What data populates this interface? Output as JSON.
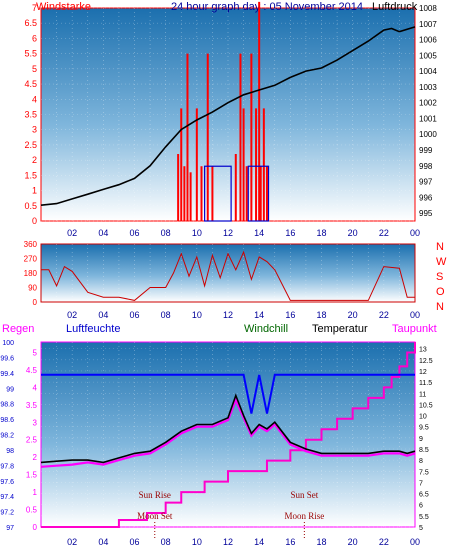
{
  "header": {
    "title": "24 hour graph day : 05 November 2014",
    "left_label": "Windstarke",
    "right_label": "Luftdruck"
  },
  "colors": {
    "wind": "#ff0000",
    "direction": "#cc0000",
    "pressure": "#000000",
    "temperature": "#000000",
    "dewpoint": "#ff00ff",
    "humidity": "#0000ff",
    "rain": "#ff00cc",
    "axis_time": "#000099",
    "sky_top": "#1b6fae",
    "sky_bottom": "#ffffff"
  },
  "time_ticks": [
    "02",
    "04",
    "06",
    "08",
    "10",
    "12",
    "14",
    "16",
    "18",
    "20",
    "22",
    "00"
  ],
  "top_panel": {
    "left_ticks": [
      "7",
      "6.5",
      "6",
      "5.5",
      "5",
      "4.5",
      "4",
      "3.5",
      "3",
      "2.5",
      "2",
      "1.5",
      "1",
      "0.5",
      "0"
    ],
    "right_ticks": [
      "1008",
      "1007",
      "1006",
      "1005",
      "1004",
      "1003",
      "1002",
      "1001",
      "1000",
      "999",
      "998",
      "997",
      "996",
      "995"
    ]
  },
  "mid_panel": {
    "left_ticks": [
      "360",
      "270",
      "180",
      "90",
      "0"
    ],
    "compass": [
      "N",
      "W",
      "S",
      "O",
      "N"
    ]
  },
  "bottom_panel": {
    "labels": {
      "rain": "Regen",
      "humidity": "Luftfeuchte",
      "windchill": "Windchill",
      "temperature": "Temperatur",
      "dewpoint": "Taupunkt"
    },
    "rain_ticks": [
      "5",
      "4.5",
      "4",
      "3.5",
      "3",
      "2.5",
      "2",
      "1.5",
      "1",
      "0.5",
      "0"
    ],
    "humidity_ticks": [
      "100",
      "99.6",
      "99.4",
      "99",
      "98.8",
      "98.6",
      "98.2",
      "98",
      "97.8",
      "97.6",
      "97.4",
      "97.2",
      "97"
    ],
    "temp_ticks": [
      "13",
      "12.5",
      "12",
      "11.5",
      "11",
      "10.5",
      "10",
      "9.5",
      "9",
      "8.5",
      "8",
      "7.5",
      "7",
      "6.5",
      "6",
      "5.5",
      "5"
    ],
    "events": [
      {
        "label": "Sun Rise",
        "hour": 7.3
      },
      {
        "label": "Moon Set",
        "hour": 7.3
      },
      {
        "label": "Sun Set",
        "hour": 16.9
      },
      {
        "label": "Moon Rise",
        "hour": 16.9
      }
    ]
  },
  "chart_data": [
    {
      "type": "line",
      "title": "24 hour graph day : 05 November 2014",
      "xlabel": "",
      "ylabel": "Windstarke",
      "y2label": "Luftdruck",
      "x_hours": [
        0,
        1,
        2,
        3,
        4,
        5,
        6,
        7,
        8,
        9,
        10,
        11,
        12,
        13,
        14,
        15,
        16,
        17,
        18,
        19,
        20,
        21,
        22,
        22.5,
        23,
        24
      ],
      "series": [
        {
          "name": "Luftdruck",
          "axis": "right",
          "values": [
            995.5,
            995.6,
            995.9,
            996.2,
            996.5,
            996.8,
            997.2,
            998.0,
            999.2,
            1000.3,
            1000.9,
            1001.4,
            1002.0,
            1002.5,
            1002.8,
            1003.1,
            1003.6,
            1004.0,
            1004.2,
            1004.7,
            1005.3,
            1005.9,
            1006.6,
            1006.7,
            1006.5,
            1006.8
          ]
        }
      ],
      "wind_spikes": [
        {
          "hour": 8.8,
          "value": 2.2
        },
        {
          "hour": 9.0,
          "value": 3.7
        },
        {
          "hour": 9.2,
          "value": 1.8
        },
        {
          "hour": 9.4,
          "value": 5.5
        },
        {
          "hour": 9.6,
          "value": 1.6
        },
        {
          "hour": 10.0,
          "value": 3.7
        },
        {
          "hour": 10.3,
          "value": 1.8
        },
        {
          "hour": 10.7,
          "value": 5.5
        },
        {
          "hour": 11.0,
          "value": 1.8
        },
        {
          "hour": 12.5,
          "value": 2.2
        },
        {
          "hour": 12.8,
          "value": 5.5
        },
        {
          "hour": 13.0,
          "value": 3.7
        },
        {
          "hour": 13.2,
          "value": 1.8
        },
        {
          "hour": 13.5,
          "value": 5.5
        },
        {
          "hour": 13.8,
          "value": 3.7
        },
        {
          "hour": 14.0,
          "value": 7.2
        },
        {
          "hour": 14.1,
          "value": 1.8
        },
        {
          "hour": 14.3,
          "value": 3.7
        },
        {
          "hour": 14.5,
          "value": 1.8
        }
      ],
      "ylim": [
        0,
        7
      ],
      "y2lim": [
        994.5,
        1008
      ]
    },
    {
      "type": "line",
      "title": "",
      "ylabel": "",
      "ylim": [
        0,
        360
      ],
      "x_hours": [
        0,
        0.5,
        1,
        1.5,
        2,
        3,
        4,
        5,
        6,
        7,
        8,
        8.5,
        9,
        9.5,
        10,
        10.5,
        11,
        11.5,
        12,
        12.5,
        13,
        13.5,
        14,
        14.5,
        15,
        16,
        17,
        18,
        19,
        20,
        21,
        22,
        23,
        23.5,
        24
      ],
      "series": [
        {
          "name": "",
          "values": [
            200,
            200,
            100,
            220,
            190,
            60,
            30,
            30,
            10,
            90,
            90,
            180,
            300,
            160,
            280,
            100,
            290,
            150,
            300,
            200,
            310,
            140,
            280,
            250,
            200,
            10,
            10,
            10,
            10,
            10,
            10,
            220,
            210,
            30,
            30
          ]
        }
      ]
    },
    {
      "type": "line",
      "title": "",
      "ylabel": "Regen",
      "ylim": [
        0,
        5.3
      ],
      "x_hours": [
        0,
        1,
        2,
        3,
        4,
        5,
        6,
        7,
        8,
        9,
        10,
        11,
        12,
        12.5,
        13,
        13.5,
        14,
        14.5,
        15,
        16,
        17,
        18,
        19,
        20,
        21,
        22,
        23,
        23.5,
        24
      ],
      "series": [
        {
          "name": "Temperatur",
          "axis": "temp",
          "values": [
            7.9,
            7.95,
            8.0,
            8.0,
            7.9,
            8.1,
            8.3,
            8.4,
            8.8,
            9.3,
            9.6,
            9.6,
            9.9,
            10.9,
            10.0,
            9.2,
            9.6,
            9.4,
            9.7,
            8.8,
            8.5,
            8.3,
            8.3,
            8.3,
            8.3,
            8.4,
            8.4,
            8.3,
            8.4
          ]
        },
        {
          "name": "Taupunkt",
          "axis": "temp",
          "values": [
            7.7,
            7.75,
            7.8,
            7.9,
            7.8,
            8.0,
            8.2,
            8.3,
            8.7,
            9.2,
            9.5,
            9.5,
            9.8,
            10.7,
            9.9,
            9.1,
            9.5,
            9.3,
            9.6,
            8.7,
            8.4,
            8.2,
            8.2,
            8.2,
            8.2,
            8.3,
            8.3,
            8.2,
            8.3
          ]
        },
        {
          "name": "Luftfeuchte",
          "axis": "humidity",
          "values": [
            99.55,
            99.55,
            99.55,
            99.55,
            99.55,
            99.55,
            99.55,
            99.55,
            99.55,
            99.55,
            99.55,
            99.55,
            99.55,
            99.55,
            99.55,
            98.9,
            99.55,
            98.9,
            99.55,
            99.55,
            99.55,
            99.55,
            99.55,
            99.55,
            99.55,
            99.55,
            99.55,
            99.55,
            99.55
          ]
        }
      ],
      "rain_steps": [
        {
          "hour": 0,
          "value": 0
        },
        {
          "hour": 5.0,
          "value": 0.2
        },
        {
          "hour": 6.8,
          "value": 0.4
        },
        {
          "hour": 8.0,
          "value": 0.7
        },
        {
          "hour": 9.0,
          "value": 1.0
        },
        {
          "hour": 10.5,
          "value": 1.3
        },
        {
          "hour": 12.0,
          "value": 1.6
        },
        {
          "hour": 14.5,
          "value": 1.9
        },
        {
          "hour": 16.0,
          "value": 2.2
        },
        {
          "hour": 17.0,
          "value": 2.5
        },
        {
          "hour": 18.0,
          "value": 2.8
        },
        {
          "hour": 19.0,
          "value": 3.1
        },
        {
          "hour": 20.0,
          "value": 3.4
        },
        {
          "hour": 21.0,
          "value": 3.7
        },
        {
          "hour": 22.0,
          "value": 4.0
        },
        {
          "hour": 22.5,
          "value": 4.3
        },
        {
          "hour": 23.0,
          "value": 4.6
        },
        {
          "hour": 23.5,
          "value": 5.0
        },
        {
          "hour": 24.0,
          "value": 5.3
        }
      ]
    }
  ]
}
